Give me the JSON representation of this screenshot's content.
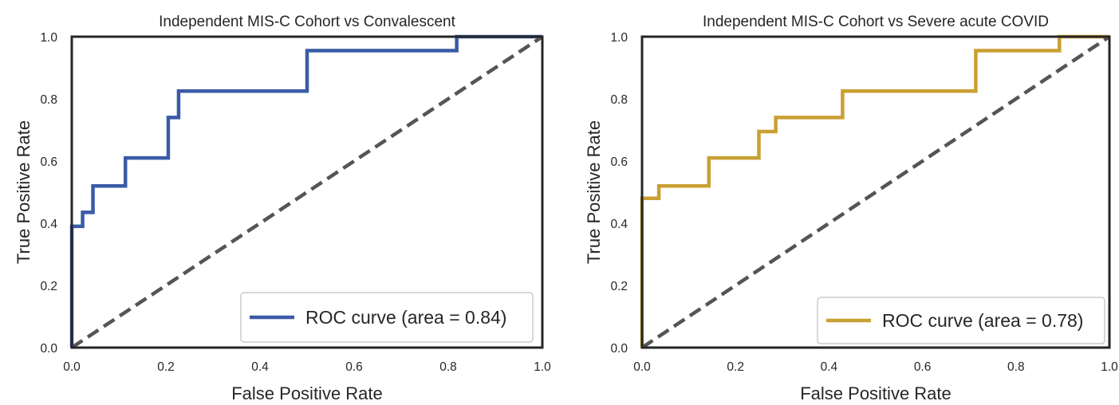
{
  "chart_data": [
    {
      "type": "line",
      "title": "Independent MIS-C Cohort vs Convalescent",
      "xlabel": "False Positive Rate",
      "ylabel": "True Positive Rate",
      "xlim": [
        0.0,
        1.0
      ],
      "ylim": [
        0.0,
        1.0
      ],
      "xticks": [
        "0.0",
        "0.2",
        "0.4",
        "0.6",
        "0.8",
        "1.0"
      ],
      "yticks": [
        "0.0",
        "0.2",
        "0.4",
        "0.6",
        "0.8",
        "1.0"
      ],
      "grid": false,
      "legend_position": "lower-right",
      "series": [
        {
          "name": "ROC curve (area = 0.84)",
          "color": "#3a5ba6",
          "x": [
            0.0,
            0.0,
            0.0,
            0.023,
            0.023,
            0.045,
            0.045,
            0.114,
            0.114,
            0.205,
            0.205,
            0.227,
            0.227,
            0.5,
            0.5,
            0.818,
            0.818,
            1.0
          ],
          "y": [
            0.0,
            0.0,
            0.39,
            0.39,
            0.435,
            0.435,
            0.52,
            0.52,
            0.61,
            0.61,
            0.74,
            0.74,
            0.825,
            0.825,
            0.955,
            0.955,
            1.0,
            1.0
          ]
        },
        {
          "name": "",
          "color": "#555555",
          "style": "dashed",
          "x": [
            0.0,
            1.0
          ],
          "y": [
            0.0,
            1.0
          ]
        }
      ]
    },
    {
      "type": "line",
      "title": "Independent MIS-C Cohort vs Severe acute COVID",
      "xlabel": "False Positive Rate",
      "ylabel": "True Positive Rate",
      "xlim": [
        0.0,
        1.0
      ],
      "ylim": [
        0.0,
        1.0
      ],
      "xticks": [
        "0.0",
        "0.2",
        "0.4",
        "0.6",
        "0.8",
        "1.0"
      ],
      "yticks": [
        "0.0",
        "0.2",
        "0.4",
        "0.6",
        "0.8",
        "1.0"
      ],
      "grid": false,
      "legend_position": "lower-right",
      "series": [
        {
          "name": "ROC curve (area = 0.78)",
          "color": "#c9a033",
          "x": [
            0.0,
            0.0,
            0.0,
            0.036,
            0.036,
            0.143,
            0.143,
            0.25,
            0.25,
            0.286,
            0.286,
            0.429,
            0.429,
            0.714,
            0.714,
            0.893,
            0.893,
            1.0
          ],
          "y": [
            0.0,
            0.0,
            0.48,
            0.48,
            0.52,
            0.52,
            0.61,
            0.61,
            0.695,
            0.695,
            0.74,
            0.74,
            0.825,
            0.825,
            0.955,
            0.955,
            1.0,
            1.0
          ]
        },
        {
          "name": "",
          "color": "#555555",
          "style": "dashed",
          "x": [
            0.0,
            1.0
          ],
          "y": [
            0.0,
            1.0
          ]
        }
      ]
    }
  ]
}
